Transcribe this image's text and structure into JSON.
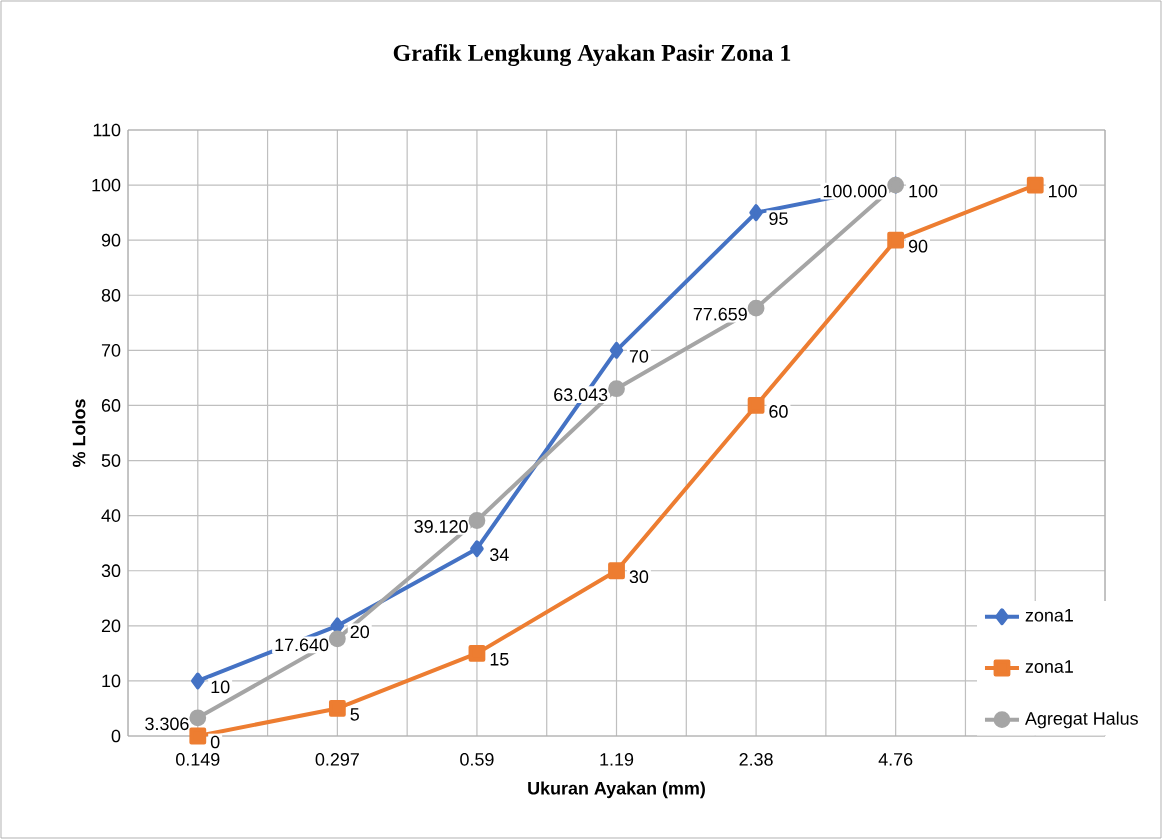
{
  "chart_data": {
    "type": "line",
    "title": "Grafik Lengkung Ayakan Pasir Zona 1",
    "xlabel": "Ukuran Ayakan (mm)",
    "ylabel": "% Lolos",
    "categories": [
      "0.149",
      "0.297",
      "0.59",
      "1.19",
      "2.38",
      "4.76",
      null
    ],
    "series": [
      {
        "name": "zona1",
        "color": "#4472c4",
        "marker": "diamond",
        "values": [
          10,
          20,
          34,
          70,
          95,
          100,
          null
        ],
        "value_labels": [
          "10",
          "20",
          "34",
          "70",
          "95",
          "100",
          null
        ]
      },
      {
        "name": "zona1",
        "color": "#ed7d31",
        "marker": "square",
        "values": [
          0,
          5,
          15,
          30,
          60,
          90,
          100
        ],
        "value_labels": [
          "0",
          "5",
          "15",
          "30",
          "60",
          "90",
          "100"
        ]
      },
      {
        "name": "Agregat Halus",
        "color": "#a5a5a5",
        "marker": "circle",
        "values": [
          3.306,
          17.64,
          39.12,
          63.043,
          77.659,
          100.0,
          null
        ],
        "value_labels": [
          "3.306",
          "17.640",
          "39.120",
          "63.043",
          "77.659",
          "100.000",
          null
        ]
      }
    ],
    "ylim": [
      0,
      110
    ],
    "yticks": [
      0,
      10,
      20,
      30,
      40,
      50,
      60,
      70,
      80,
      90,
      100,
      110
    ],
    "grid": true,
    "legend": "bottom right",
    "line_style": "solid"
  }
}
